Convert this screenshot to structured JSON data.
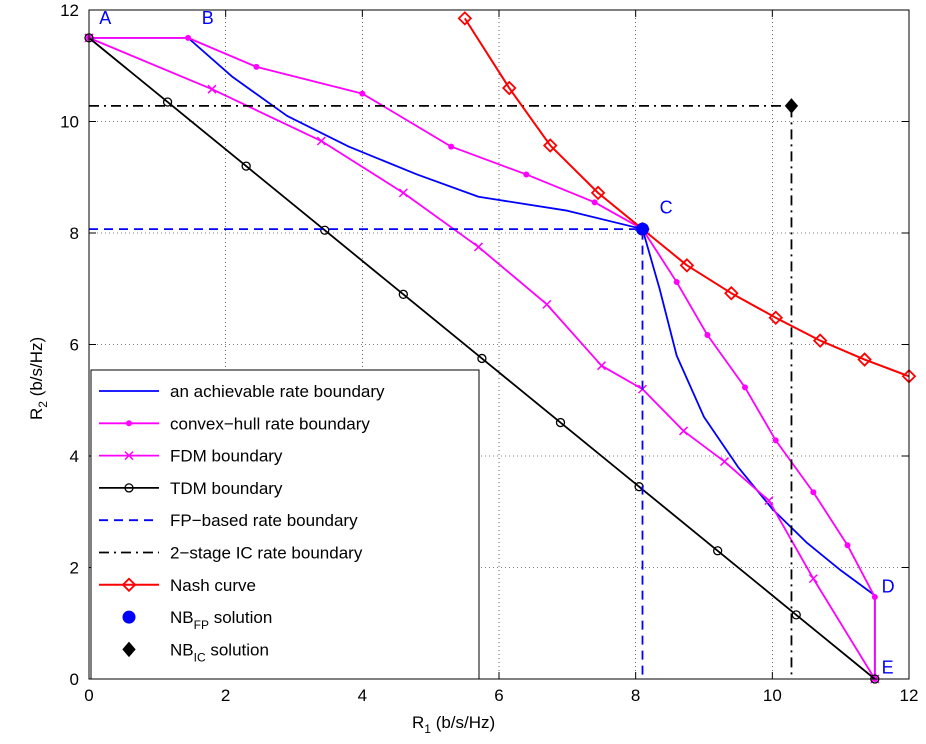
{
  "chart_data": {
    "type": "line",
    "xlabel_main": "R",
    "xlabel_sub": "1",
    "xlabel_unit": " (b/s/Hz)",
    "ylabel_main": "R",
    "ylabel_sub": "2",
    "ylabel_unit": " (b/s/Hz)",
    "xlim": [
      0,
      12
    ],
    "ylim": [
      0,
      12
    ],
    "xticks": [
      "0",
      "2",
      "4",
      "6",
      "8",
      "10",
      "12"
    ],
    "yticks": [
      "0",
      "2",
      "4",
      "6",
      "8",
      "10",
      "12"
    ],
    "grid": "dotted",
    "legend_position": "bottom-left",
    "point_labels": [
      {
        "text": "A",
        "x": 0.15,
        "y": 11.75,
        "color": "#0000ff"
      },
      {
        "text": "B",
        "x": 1.65,
        "y": 11.75,
        "color": "#0000ff"
      },
      {
        "text": "C",
        "x": 8.35,
        "y": 8.35,
        "color": "#0000ff"
      },
      {
        "text": "D",
        "x": 11.6,
        "y": 1.55,
        "color": "#0000ff"
      },
      {
        "text": "E",
        "x": 11.6,
        "y": 0.1,
        "color": "#0000ff"
      }
    ],
    "series": [
      {
        "name": "an achievable rate boundary",
        "color": "#0000ff",
        "dash": "solid",
        "marker": "none",
        "points": [
          [
            0,
            11.5
          ],
          [
            1.45,
            11.5
          ],
          [
            2.1,
            10.8
          ],
          [
            2.9,
            10.1
          ],
          [
            3.8,
            9.55
          ],
          [
            4.8,
            9.05
          ],
          [
            5.7,
            8.65
          ],
          [
            7.0,
            8.4
          ],
          [
            8.1,
            8.07
          ],
          [
            8.35,
            7.0
          ],
          [
            8.6,
            5.8
          ],
          [
            9.0,
            4.7
          ],
          [
            9.5,
            3.8
          ],
          [
            10.0,
            3.05
          ],
          [
            10.5,
            2.45
          ],
          [
            11.0,
            1.95
          ],
          [
            11.5,
            1.5
          ],
          [
            11.5,
            0
          ]
        ]
      },
      {
        "name": "convex−hull rate boundary",
        "color": "#ff00ff",
        "dash": "solid",
        "marker": "dot",
        "points": [
          [
            0,
            11.5
          ],
          [
            1.45,
            11.5
          ],
          [
            2.45,
            10.98
          ],
          [
            4.0,
            10.5
          ],
          [
            5.3,
            9.55
          ],
          [
            6.4,
            9.05
          ],
          [
            7.4,
            8.55
          ],
          [
            8.1,
            8.07
          ],
          [
            8.6,
            7.12
          ],
          [
            9.05,
            6.17
          ],
          [
            9.6,
            5.23
          ],
          [
            10.05,
            4.28
          ],
          [
            10.6,
            3.35
          ],
          [
            11.1,
            2.4
          ],
          [
            11.5,
            1.47
          ],
          [
            11.5,
            0
          ]
        ]
      },
      {
        "name": "FDM boundary",
        "color": "#ff00ff",
        "dash": "solid",
        "marker": "x",
        "points": [
          [
            0,
            11.5
          ],
          [
            1.8,
            10.58
          ],
          [
            3.4,
            9.65
          ],
          [
            4.6,
            8.72
          ],
          [
            5.7,
            7.75
          ],
          [
            6.7,
            6.72
          ],
          [
            7.5,
            5.62
          ],
          [
            8.1,
            5.2
          ],
          [
            8.7,
            4.45
          ],
          [
            9.3,
            3.9
          ],
          [
            9.95,
            3.2
          ],
          [
            10.6,
            1.8
          ],
          [
            11.5,
            0
          ]
        ]
      },
      {
        "name": "TDM boundary",
        "color": "#000000",
        "dash": "solid",
        "marker": "circle",
        "points": [
          [
            0,
            11.5
          ],
          [
            1.15,
            10.35
          ],
          [
            2.3,
            9.2
          ],
          [
            3.45,
            8.05
          ],
          [
            4.6,
            6.9
          ],
          [
            5.75,
            5.75
          ],
          [
            6.9,
            4.6
          ],
          [
            8.05,
            3.45
          ],
          [
            9.2,
            2.3
          ],
          [
            10.35,
            1.15
          ],
          [
            11.5,
            0
          ]
        ]
      },
      {
        "name": "FP−based rate boundary",
        "color": "#0000ff",
        "dash": "dashed",
        "marker": "none",
        "points": [
          [
            0,
            8.07
          ],
          [
            8.1,
            8.07
          ],
          [
            8.1,
            0
          ]
        ]
      },
      {
        "name": "2−stage IC rate boundary",
        "color": "#000000",
        "dash": "dashdot",
        "marker": "none",
        "points": [
          [
            0,
            10.28
          ],
          [
            10.28,
            10.28
          ],
          [
            10.28,
            0
          ]
        ]
      },
      {
        "name": "Nash curve",
        "color": "#ff0000",
        "dash": "solid",
        "marker": "diamond",
        "points": [
          [
            5.5,
            11.85
          ],
          [
            6.15,
            10.6
          ],
          [
            6.75,
            9.57
          ],
          [
            7.45,
            8.72
          ],
          [
            8.1,
            8.07
          ],
          [
            8.75,
            7.42
          ],
          [
            9.4,
            6.92
          ],
          [
            10.05,
            6.48
          ],
          [
            10.7,
            6.07
          ],
          [
            11.35,
            5.73
          ],
          [
            12.0,
            5.43
          ]
        ]
      },
      {
        "name": "NB",
        "name_sub": "FP",
        "name_suffix": " solution",
        "color": "#0000ff",
        "dash": "none",
        "marker": "filled-circle",
        "points": [
          [
            8.1,
            8.07
          ]
        ]
      },
      {
        "name": "NB",
        "name_sub": "IC",
        "name_suffix": " solution",
        "color": "#000000",
        "dash": "none",
        "marker": "filled-diamond",
        "points": [
          [
            10.28,
            10.28
          ]
        ]
      }
    ]
  }
}
